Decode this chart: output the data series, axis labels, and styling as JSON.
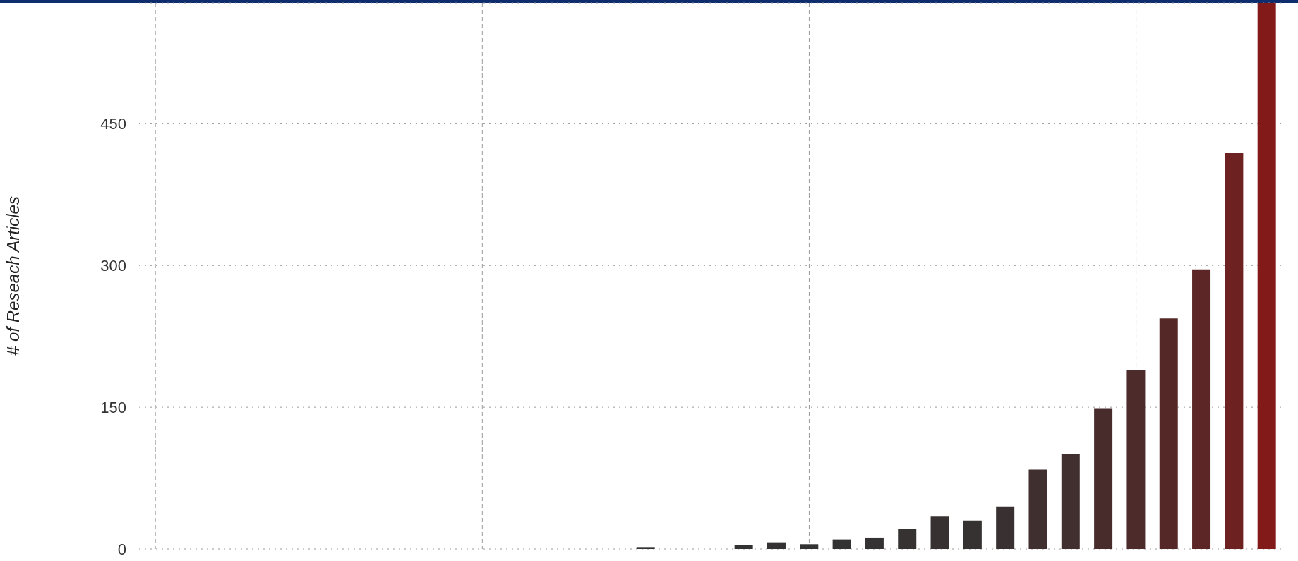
{
  "chart_data": {
    "type": "bar",
    "ylabel": "# of Reseach Articles",
    "categories": [
      null,
      null,
      null,
      null,
      null,
      null,
      null,
      null,
      null,
      null,
      null,
      null,
      null,
      null,
      null,
      null,
      null,
      null,
      null,
      null,
      null,
      null,
      null,
      null,
      null,
      null,
      null,
      null,
      null,
      null,
      null,
      null,
      null,
      null,
      null
    ],
    "values": [
      0,
      0,
      0,
      0,
      0,
      0,
      0,
      0,
      0,
      0,
      0,
      0,
      0,
      0,
      0,
      2,
      0,
      0,
      4,
      7,
      5,
      10,
      12,
      21,
      35,
      30,
      45,
      84,
      100,
      149,
      189,
      244,
      296,
      419,
      578
    ],
    "colors": [
      "#333333",
      "#333333",
      "#333333",
      "#333333",
      "#333333",
      "#333333",
      "#333333",
      "#333333",
      "#333333",
      "#333333",
      "#333333",
      "#333333",
      "#333333",
      "#333333",
      "#333333",
      "#333333",
      "#333333",
      "#333333",
      "#333333",
      "#343232",
      "#333333",
      "#343333",
      "#343232",
      "#363232",
      "#383131",
      "#373232",
      "#393131",
      "#3f2f2f",
      "#412f2f",
      "#482c2c",
      "#4d2b2b",
      "#552828",
      "#5c2626",
      "#6d2121",
      "#831a1a"
    ],
    "ylim": [
      0,
      578
    ],
    "yticks": [
      0,
      150,
      300,
      450
    ],
    "grid": true,
    "tick_labels": "y"
  }
}
